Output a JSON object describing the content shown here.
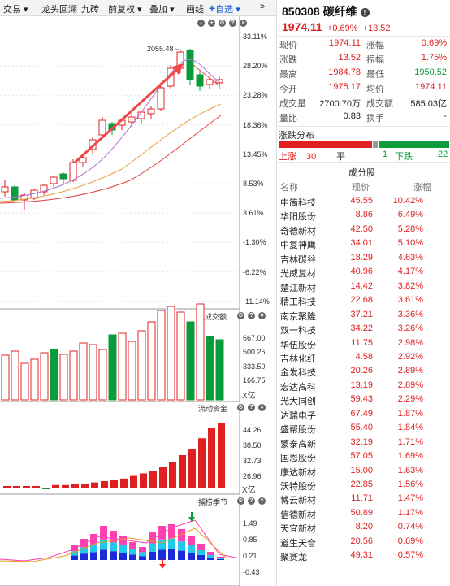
{
  "toolbar": {
    "items": [
      "交易",
      "龙头回溯",
      "九砖",
      "前复权",
      "叠加",
      "画线"
    ],
    "add_label": "自选",
    "expand": "»"
  },
  "main_chart": {
    "high_marker": "2055.48",
    "axis_labels": [
      "33.11%",
      "28.20%",
      "23.28%",
      "18.36%",
      "13.45%",
      "8.53%",
      "3.61%",
      "-1.30%",
      "-6.22%",
      "-11.14%"
    ]
  },
  "volume_panel": {
    "title": "成交额",
    "axis_labels": [
      "667.00",
      "500.25",
      "333.50",
      "166.75"
    ],
    "unit": "X亿"
  },
  "flow_panel": {
    "title": "流动资金",
    "axis_labels": [
      "44.26",
      "38.50",
      "32.73",
      "26.96"
    ],
    "unit": "X亿"
  },
  "season_panel": {
    "title": "捕捞季节",
    "axis_labels": [
      "1.49",
      "0.85",
      "0.21",
      "-0.43"
    ]
  },
  "quote": {
    "code": "850308",
    "name": "碳纤维",
    "price": "1974.11",
    "change_pct": "+0.69%",
    "change": "+13.52",
    "rows": [
      {
        "l1": "现价",
        "v1": "1974.11",
        "l2": "涨幅",
        "v2": "0.69%"
      },
      {
        "l1": "涨跌",
        "v1": "13.52",
        "l2": "振幅",
        "v2": "1.75%"
      },
      {
        "l1": "最高",
        "v1": "1984.78",
        "l2": "最低",
        "v2": "1950.52"
      },
      {
        "l1": "今开",
        "v1": "1975.17",
        "l2": "均价",
        "v2": "1974.11"
      },
      {
        "l1": "成交量",
        "v1": "2700.70万",
        "l2": "成交额",
        "v2": "585.03亿"
      },
      {
        "l1": "量比",
        "v1": "0.83",
        "l2": "换手",
        "v2": "-"
      }
    ]
  },
  "distribution": {
    "title": "涨跌分布",
    "up_label": "上涨",
    "up": "30",
    "flat_label": "平",
    "flat": "1",
    "down_label": "下跌",
    "down": "22"
  },
  "components": {
    "title": "成分股",
    "headers": [
      "名称",
      "现价",
      "涨幅"
    ],
    "stocks": [
      {
        "name": "中简科技",
        "price": "45.55",
        "pct": "10.42%"
      },
      {
        "name": "华阳股份",
        "price": "8.86",
        "pct": "6.49%"
      },
      {
        "name": "奇德新材",
        "price": "42.50",
        "pct": "5.28%"
      },
      {
        "name": "中复神鹰",
        "price": "34.01",
        "pct": "5.10%"
      },
      {
        "name": "吉林碳谷",
        "price": "18.29",
        "pct": "4.63%"
      },
      {
        "name": "光威复材",
        "price": "40.96",
        "pct": "4.17%"
      },
      {
        "name": "楚江新材",
        "price": "14.42",
        "pct": "3.82%"
      },
      {
        "name": "精工科技",
        "price": "22.68",
        "pct": "3.61%"
      },
      {
        "name": "南京聚隆",
        "price": "37.21",
        "pct": "3.36%"
      },
      {
        "name": "双一科技",
        "price": "34.22",
        "pct": "3.26%"
      },
      {
        "name": "华伍股份",
        "price": "11.75",
        "pct": "2.98%"
      },
      {
        "name": "吉林化纤",
        "price": "4.58",
        "pct": "2.92%"
      },
      {
        "name": "金发科技",
        "price": "20.26",
        "pct": "2.89%"
      },
      {
        "name": "宏达高科",
        "price": "13.19",
        "pct": "2.89%"
      },
      {
        "name": "光大同创",
        "price": "59.43",
        "pct": "2.29%"
      },
      {
        "name": "达瑞电子",
        "price": "67.49",
        "pct": "1.87%"
      },
      {
        "name": "盛帮股份",
        "price": "55.40",
        "pct": "1.84%"
      },
      {
        "name": "蒙泰高新",
        "price": "32.19",
        "pct": "1.71%"
      },
      {
        "name": "国恩股份",
        "price": "57.05",
        "pct": "1.69%"
      },
      {
        "name": "康达新材",
        "price": "15.00",
        "pct": "1.63%"
      },
      {
        "name": "沃特股份",
        "price": "22.85",
        "pct": "1.56%"
      },
      {
        "name": "博云新材",
        "price": "11.71",
        "pct": "1.47%"
      },
      {
        "name": "信德新材",
        "price": "50.89",
        "pct": "1.17%"
      },
      {
        "name": "天宜新材",
        "price": "8.20",
        "pct": "0.74%"
      },
      {
        "name": "道生天合",
        "price": "20.56",
        "pct": "0.69%"
      },
      {
        "name": "聚赛龙",
        "price": "49.31",
        "pct": "0.57%"
      }
    ]
  },
  "colors": {
    "up": "#e02020",
    "down": "#0a9b3a",
    "accent": "#1a5fd0"
  }
}
